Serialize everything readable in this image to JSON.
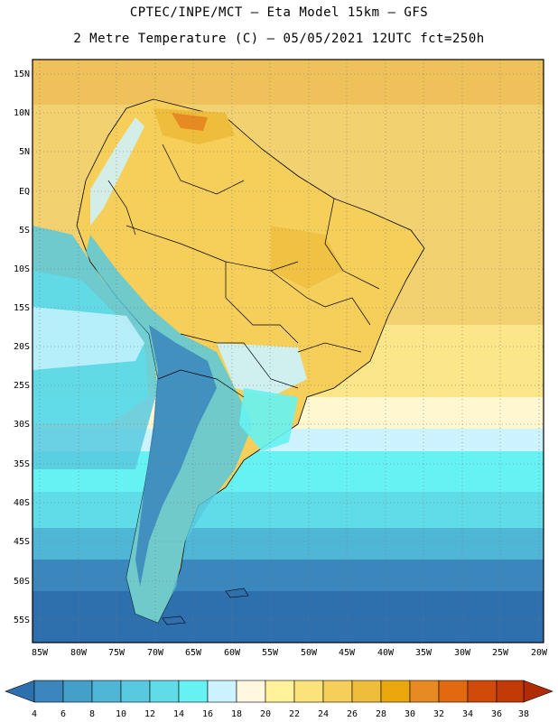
{
  "header": {
    "line1": "CPTEC/INPE/MCT –  Eta Model 15km – GFS",
    "line2": "2 Metre Temperature (C) – 05/05/2021 12UTC fct=250h"
  },
  "axes": {
    "lat_labels": [
      "15N",
      "10N",
      "5N",
      "EQ",
      "5S",
      "10S",
      "15S",
      "20S",
      "25S",
      "30S",
      "35S",
      "40S",
      "45S",
      "50S",
      "55S"
    ],
    "lon_labels": [
      "85W",
      "80W",
      "75W",
      "70W",
      "65W",
      "60W",
      "55W",
      "50W",
      "45W",
      "40W",
      "35W",
      "30W",
      "25W",
      "20W"
    ]
  },
  "colorbar": {
    "labels": [
      "4",
      "6",
      "8",
      "10",
      "12",
      "14",
      "16",
      "18",
      "20",
      "22",
      "24",
      "26",
      "28",
      "30",
      "32",
      "34",
      "36",
      "38"
    ],
    "colors": [
      "#2e6fae",
      "#3a86bd",
      "#44a0c9",
      "#4fb6d6",
      "#58c9de",
      "#5fdce8",
      "#66f2f2",
      "#ccf3ff",
      "#fff8e0",
      "#fff29a",
      "#fbe27a",
      "#f5cf5a",
      "#efbd3c",
      "#eaa80e",
      "#e88a22",
      "#e16a10",
      "#d24a0a",
      "#c23a06",
      "#b02c04"
    ]
  }
}
